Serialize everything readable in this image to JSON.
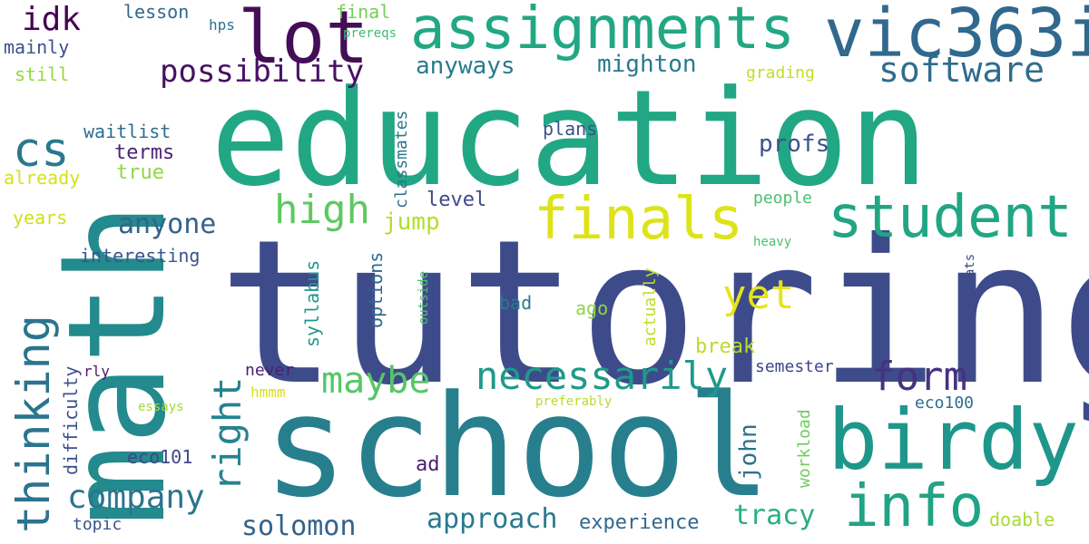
{
  "words": [
    {
      "text": "tutoring",
      "color": "#3e4b8b"
    },
    {
      "text": "education",
      "color": "#22a784"
    },
    {
      "text": "math",
      "color": "#238a8d"
    },
    {
      "text": "school",
      "color": "#277f8e"
    },
    {
      "text": "assignments",
      "color": "#22a784"
    },
    {
      "text": "vic363i",
      "color": "#31688e"
    },
    {
      "text": "lot",
      "color": "#440e57"
    },
    {
      "text": "birdy",
      "color": "#1f968b"
    },
    {
      "text": "student",
      "color": "#21a685"
    },
    {
      "text": "finals",
      "color": "#dde318"
    },
    {
      "text": "info",
      "color": "#20a386"
    },
    {
      "text": "software",
      "color": "#2f6c8e"
    },
    {
      "text": "thinking",
      "color": "#2b748e"
    },
    {
      "text": "company",
      "color": "#2b758e"
    },
    {
      "text": "necessarily",
      "color": "#1f9a8a"
    },
    {
      "text": "maybe",
      "color": "#56c667"
    },
    {
      "text": "possibility",
      "color": "#471164"
    },
    {
      "text": "cs",
      "color": "#2a788e"
    },
    {
      "text": "high",
      "color": "#5ec962"
    },
    {
      "text": "form",
      "color": "#46327e"
    },
    {
      "text": "yet",
      "color": "#e5e419"
    },
    {
      "text": "right",
      "color": "#25838e"
    },
    {
      "text": "idk",
      "color": "#440154"
    },
    {
      "text": "anyone",
      "color": "#33638d"
    },
    {
      "text": "approach",
      "color": "#29798e"
    },
    {
      "text": "tracy",
      "color": "#29af7f"
    },
    {
      "text": "solomon",
      "color": "#33638d"
    },
    {
      "text": "anyways",
      "color": "#297b8e"
    },
    {
      "text": "mighton",
      "color": "#297a8e"
    },
    {
      "text": "experience",
      "color": "#31688e"
    },
    {
      "text": "jump",
      "color": "#b5de2b"
    },
    {
      "text": "john",
      "color": "#2c718e"
    },
    {
      "text": "profs",
      "color": "#3b528b"
    },
    {
      "text": "terms",
      "color": "#482677"
    },
    {
      "text": "true",
      "color": "#90d743"
    },
    {
      "text": "level",
      "color": "#3e4989"
    },
    {
      "text": "break",
      "color": "#b8de29"
    },
    {
      "text": "doable",
      "color": "#a8db34"
    },
    {
      "text": "classmates",
      "color": "#2a768e"
    },
    {
      "text": "waitlist",
      "color": "#2e6e8e"
    },
    {
      "text": "interesting",
      "color": "#39558c"
    },
    {
      "text": "syllabus",
      "color": "#1f968b"
    },
    {
      "text": "options",
      "color": "#31688e"
    },
    {
      "text": "already",
      "color": "#d2e21b"
    },
    {
      "text": "years",
      "color": "#cde11d"
    },
    {
      "text": "still",
      "color": "#95d840"
    },
    {
      "text": "mainly",
      "color": "#3b528b"
    },
    {
      "text": "lesson",
      "color": "#31688e"
    },
    {
      "text": "final",
      "color": "#73d056"
    },
    {
      "text": "hps",
      "color": "#2c718e"
    },
    {
      "text": "prereqs",
      "color": "#3dbc74"
    },
    {
      "text": "grading",
      "color": "#c2df23"
    },
    {
      "text": "plans",
      "color": "#3b528b"
    },
    {
      "text": "people",
      "color": "#4ac16d"
    },
    {
      "text": "heavy",
      "color": "#4ac16d"
    },
    {
      "text": "stats",
      "color": "#3e4c8a"
    },
    {
      "text": "bad",
      "color": "#2a788e"
    },
    {
      "text": "ago",
      "color": "#90d743"
    },
    {
      "text": "actually",
      "color": "#bddf26"
    },
    {
      "text": "outside",
      "color": "#4ac16d"
    },
    {
      "text": "semester",
      "color": "#3f4788"
    },
    {
      "text": "eco100",
      "color": "#2e6e8e"
    },
    {
      "text": "never",
      "color": "#482173"
    },
    {
      "text": "hmmm",
      "color": "#d8e219"
    },
    {
      "text": "workload",
      "color": "#6ccd5a"
    },
    {
      "text": "preferably",
      "color": "#b5de2b"
    },
    {
      "text": "essays",
      "color": "#a2da37"
    },
    {
      "text": "difficulty",
      "color": "#3b528b"
    },
    {
      "text": "rly",
      "color": "#481a6c"
    },
    {
      "text": "eco101",
      "color": "#3e4989"
    },
    {
      "text": "ad",
      "color": "#481f70"
    },
    {
      "text": "topic",
      "color": "#3b528b"
    }
  ]
}
